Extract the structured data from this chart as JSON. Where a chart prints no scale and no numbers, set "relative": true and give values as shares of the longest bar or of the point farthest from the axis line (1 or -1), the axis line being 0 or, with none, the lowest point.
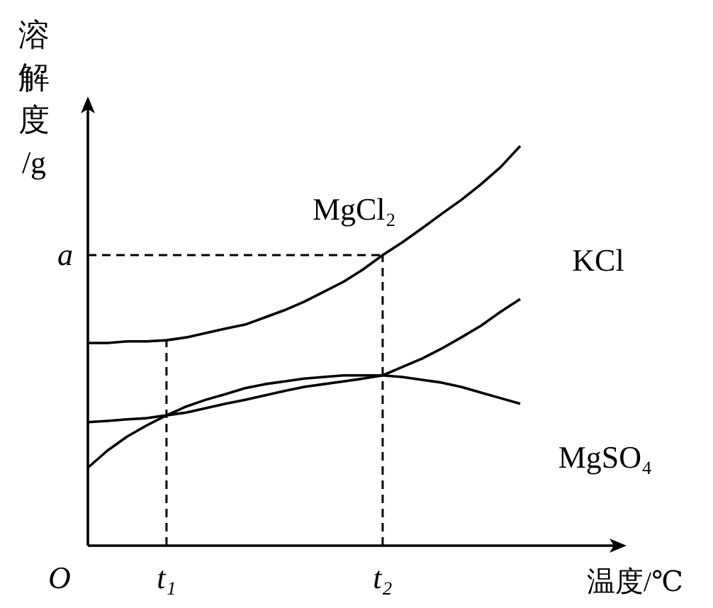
{
  "chart_data": {
    "type": "line",
    "relative": true,
    "xlabel": "温度/℃",
    "ylabel": "溶解度/g",
    "categories": [
      null,
      null,
      null,
      null,
      "t₁",
      null,
      null,
      null,
      null,
      null,
      null,
      null,
      null,
      null,
      null,
      "t₂",
      null,
      null,
      null,
      null,
      null,
      null,
      null
    ],
    "annotations": [
      "O"
    ],
    "series": [
      {
        "name": "MgCl₂",
        "color": "#000000",
        "values": [
          0.507,
          0.507,
          0.511,
          0.511,
          0.514,
          0.521,
          0.532,
          0.543,
          0.553,
          0.571,
          0.589,
          0.61,
          0.635,
          0.66,
          0.691,
          0.727,
          0.759,
          0.794,
          0.83,
          0.865,
          0.904,
          0.947,
          1
        ]
      },
      {
        "name": "KCl",
        "color": "#000000",
        "values": [
          0.309,
          0.312,
          0.316,
          0.319,
          0.326,
          0.333,
          0.344,
          0.355,
          0.365,
          0.376,
          0.387,
          0.397,
          0.404,
          0.411,
          0.418,
          0.426,
          0.447,
          0.468,
          0.493,
          0.521,
          0.55,
          0.585,
          0.617
        ]
      },
      {
        "name": "MgSO₄",
        "color": "#000000",
        "values": [
          0.195,
          0.238,
          0.273,
          0.301,
          0.326,
          0.348,
          0.365,
          0.379,
          0.394,
          0.404,
          0.411,
          0.418,
          0.422,
          0.426,
          0.426,
          0.426,
          0.422,
          0.415,
          0.408,
          0.397,
          0.383,
          0.369,
          0.355
        ]
      }
    ],
    "ref_lines": [
      {
        "axis": "y",
        "value": 0.727,
        "label": "a",
        "line_style": "dashed"
      },
      {
        "axis": "x",
        "value": "t₁",
        "line_style": "dashed"
      },
      {
        "axis": "x",
        "value": "t₂",
        "line_style": "dashed"
      }
    ],
    "legend": false,
    "grid": false,
    "line_style": "solid",
    "marker": "none"
  }
}
